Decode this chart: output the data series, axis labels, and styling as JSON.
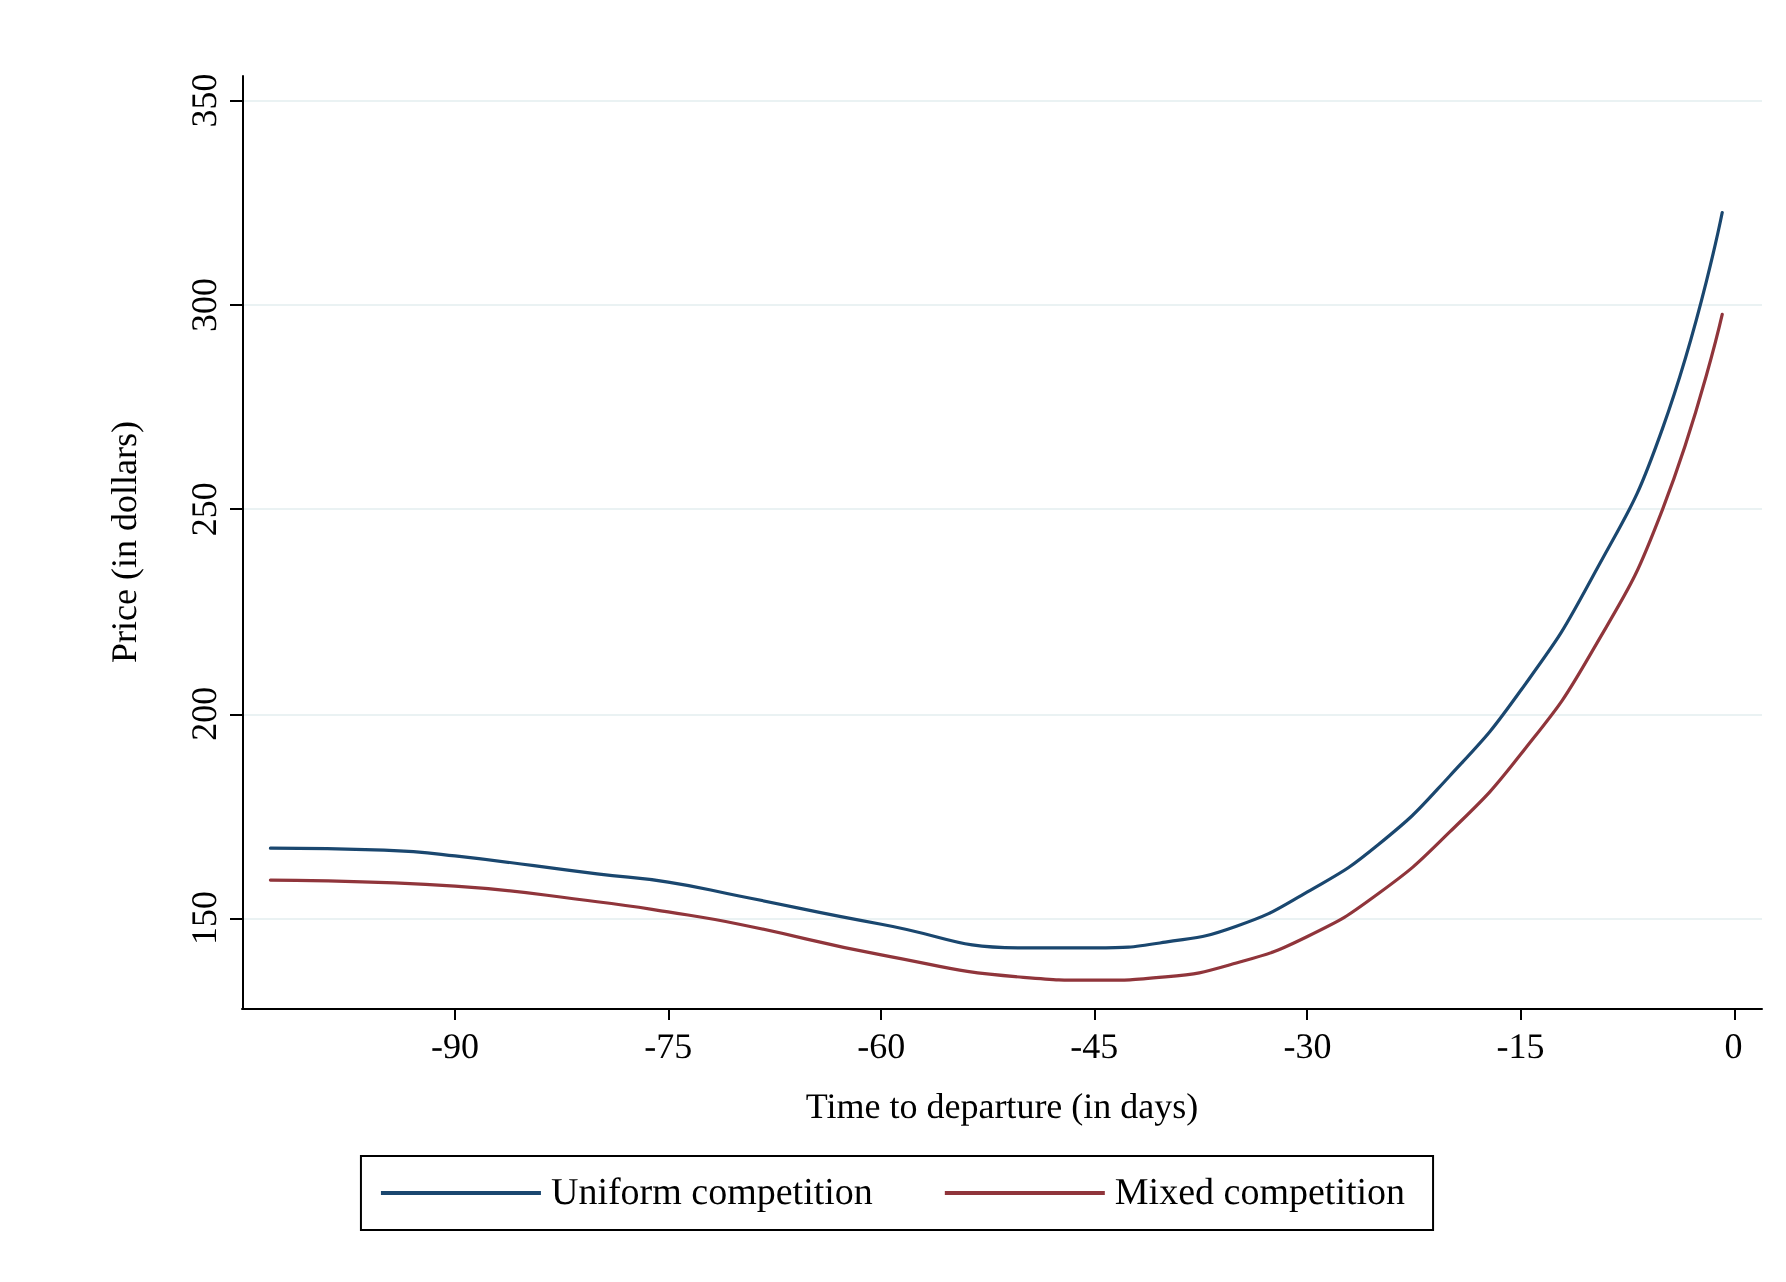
{
  "chart_data": {
    "type": "line",
    "xlabel": "Time to departure (in days)",
    "ylabel": "Price (in dollars)",
    "xlim": [
      -105,
      2
    ],
    "ylim": [
      128,
      356
    ],
    "xticks": [
      -90,
      -75,
      -60,
      -45,
      -30,
      -15,
      0
    ],
    "yticks": [
      150,
      200,
      250,
      300,
      350
    ],
    "grid": "y",
    "legend": "bottom",
    "marker": "none",
    "line_style": "solid",
    "series": [
      {
        "name": "Uniform competition",
        "color": "#1a476f",
        "x": [
          -103,
          -95,
          -90,
          -80,
          -75,
          -70,
          -60,
          -50,
          -45,
          -40,
          -35,
          -30,
          -25,
          -20,
          -15,
          -10,
          -5,
          -0.8
        ],
        "values": [
          167.1,
          166.6,
          165.2,
          160.8,
          158.8,
          155.4,
          148.5,
          142.7,
          142.7,
          144.1,
          148,
          156.4,
          168,
          184.7,
          205.6,
          233,
          269.8,
          322.6
        ]
      },
      {
        "name": "Mixed competition",
        "color": "#90353b",
        "x": [
          -103,
          -90,
          -80,
          -75,
          -70,
          -60,
          -50,
          -45,
          -40,
          -35,
          -30,
          -25,
          -20,
          -15,
          -10,
          -5,
          -0.8
        ],
        "values": [
          159.3,
          157.8,
          154,
          151.5,
          148.5,
          141,
          135.5,
          134.8,
          135.6,
          139,
          145.5,
          156,
          171,
          190,
          215,
          250,
          297.7
        ]
      }
    ]
  }
}
